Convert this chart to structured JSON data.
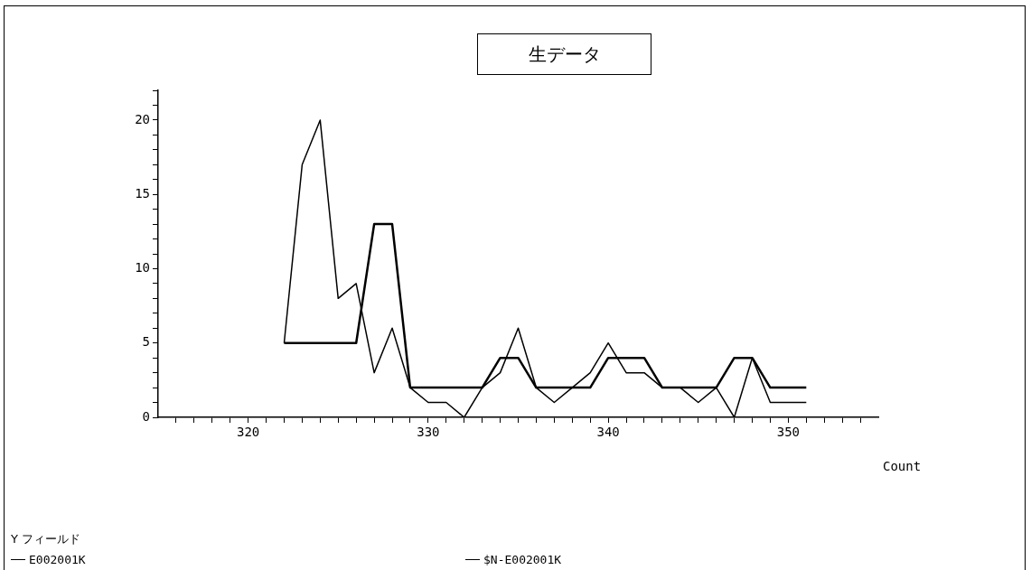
{
  "chart_data": {
    "type": "line",
    "title": "生データ",
    "xlabel": "Count",
    "legend_title": "Y フィールド",
    "legend": "bottom",
    "grid": false,
    "marker": "none",
    "line_style": "solid",
    "xlim": [
      315,
      355
    ],
    "xticks": [
      {
        "value": 316,
        "label": null
      },
      {
        "value": 317,
        "label": null
      },
      {
        "value": 318,
        "label": null
      },
      {
        "value": 319,
        "label": null
      },
      320,
      {
        "value": 321,
        "label": null
      },
      {
        "value": 322,
        "label": null
      },
      {
        "value": 323,
        "label": null
      },
      {
        "value": 324,
        "label": null
      },
      {
        "value": 325,
        "label": null
      },
      {
        "value": 326,
        "label": null
      },
      {
        "value": 327,
        "label": null
      },
      {
        "value": 328,
        "label": null
      },
      {
        "value": 329,
        "label": null
      },
      330,
      {
        "value": 331,
        "label": null
      },
      {
        "value": 332,
        "label": null
      },
      {
        "value": 333,
        "label": null
      },
      {
        "value": 334,
        "label": null
      },
      {
        "value": 335,
        "label": null
      },
      {
        "value": 336,
        "label": null
      },
      {
        "value": 337,
        "label": null
      },
      {
        "value": 338,
        "label": null
      },
      {
        "value": 339,
        "label": null
      },
      340,
      {
        "value": 341,
        "label": null
      },
      {
        "value": 342,
        "label": null
      },
      {
        "value": 343,
        "label": null
      },
      {
        "value": 344,
        "label": null
      },
      {
        "value": 345,
        "label": null
      },
      {
        "value": 346,
        "label": null
      },
      {
        "value": 347,
        "label": null
      },
      {
        "value": 348,
        "label": null
      },
      {
        "value": 349,
        "label": null
      },
      350,
      {
        "value": 351,
        "label": null
      },
      {
        "value": 352,
        "label": null
      },
      {
        "value": 353,
        "label": null
      },
      {
        "value": 354,
        "label": null
      }
    ],
    "ylim": [
      0,
      22
    ],
    "yticks": [
      0,
      {
        "value": 1,
        "label": null
      },
      {
        "value": 2,
        "label": null
      },
      {
        "value": 3,
        "label": null
      },
      {
        "value": 4,
        "label": null
      },
      5,
      {
        "value": 6,
        "label": null
      },
      {
        "value": 7,
        "label": null
      },
      {
        "value": 8,
        "label": null
      },
      {
        "value": 9,
        "label": null
      },
      10,
      {
        "value": 11,
        "label": null
      },
      {
        "value": 12,
        "label": null
      },
      {
        "value": 13,
        "label": null
      },
      {
        "value": 14,
        "label": null
      },
      15,
      {
        "value": 16,
        "label": null
      },
      {
        "value": 17,
        "label": null
      },
      {
        "value": 18,
        "label": null
      },
      {
        "value": 19,
        "label": null
      },
      20,
      {
        "value": 21,
        "label": null
      },
      {
        "value": 22,
        "label": null
      }
    ],
    "x": [
      322,
      323,
      324,
      325,
      326,
      327,
      328,
      329,
      330,
      331,
      332,
      333,
      334,
      335,
      336,
      337,
      338,
      339,
      340,
      341,
      342,
      343,
      344,
      345,
      346,
      347,
      348,
      349,
      350,
      351
    ],
    "series": [
      {
        "name": "E002001K",
        "color": "#000000",
        "values": [
          5,
          17,
          20,
          8,
          9,
          3,
          6,
          2,
          1,
          1,
          0,
          2,
          3,
          6,
          2,
          1,
          2,
          3,
          5,
          3,
          3,
          2,
          2,
          1,
          2,
          0,
          4,
          1,
          1,
          1
        ]
      },
      {
        "name": "$N-E002001K",
        "color": "#000000",
        "values": [
          5,
          5,
          5,
          5,
          5,
          13,
          13,
          2,
          2,
          2,
          2,
          2,
          4,
          4,
          2,
          2,
          2,
          2,
          4,
          4,
          4,
          2,
          2,
          2,
          2,
          4,
          4,
          2,
          2,
          2
        ]
      }
    ]
  }
}
